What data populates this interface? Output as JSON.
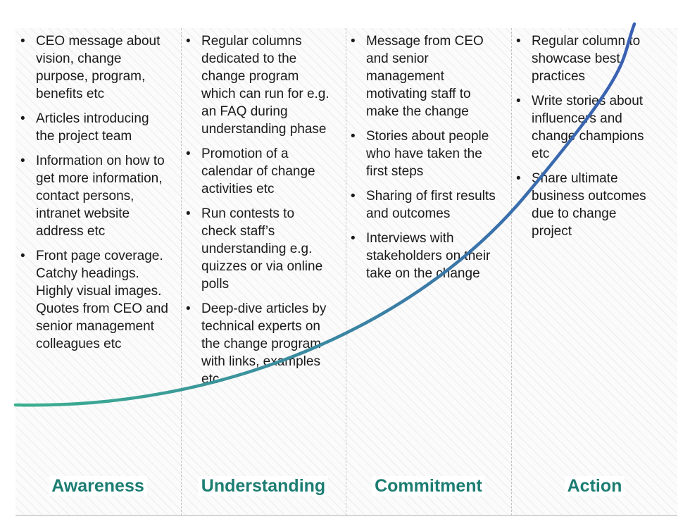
{
  "colors": {
    "phase_label": "#1c7d72",
    "curve_start": "#3bb08f",
    "curve_end": "#3a5fb3"
  },
  "columns": [
    {
      "items": [
        "CEO message about\nvision, change\npurpose, program,\nbenefits etc",
        "Articles introducing\nthe project team",
        "Information on how to\nget more information,\ncontact persons,\nintranet website\naddress etc",
        "Front page coverage.\nCatchy headings.\nHighly visual images.\nQuotes from CEO and\nsenior management\ncolleagues etc"
      ]
    },
    {
      "items": [
        "Regular columns\ndedicated to the\nchange program\nwhich can run for e.g.\nan FAQ during\nunderstanding phase",
        "Promotion of a\ncalendar of change\nactivities etc",
        "Run contests to\ncheck staff’s\nunderstanding e.g.\nquizzes or via online\npolls",
        "Deep-dive articles by\ntechnical experts on\nthe change program\nwith links, examples\netc"
      ]
    },
    {
      "items": [
        "Message from CEO\nand senior\nmanagement\nmotivating staff to\nmake the change",
        "Stories about people\nwho have taken the\nfirst steps",
        "Sharing of first results\nand outcomes",
        "Interviews with\nstakeholders on their\ntake on the change"
      ]
    },
    {
      "items": [
        "Regular column to\nshowcase best\npractices",
        "Write stories about\ninfluencers and\nchange champions\netc",
        "Share ultimate\nbusiness outcomes\ndue to change\nproject"
      ]
    }
  ],
  "phases": [
    "Awareness",
    "Understanding",
    "Commitment",
    "Action"
  ]
}
